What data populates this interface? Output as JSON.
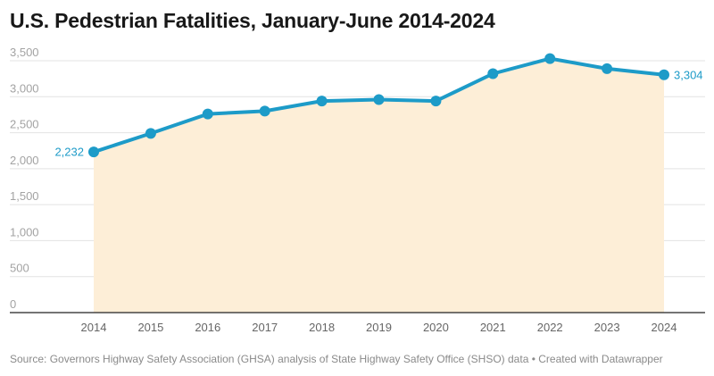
{
  "chart_data": {
    "type": "area",
    "title": "U.S. Pedestrian Fatalities, January-June 2014-2024",
    "xlabel": "",
    "ylabel": "",
    "categories": [
      "2014",
      "2015",
      "2016",
      "2017",
      "2018",
      "2019",
      "2020",
      "2021",
      "2022",
      "2023",
      "2024"
    ],
    "series": [
      {
        "name": "Pedestrian fatalities",
        "values": [
          2232,
          2490,
          2760,
          2800,
          2940,
          2960,
          2940,
          3320,
          3530,
          3390,
          3304
        ],
        "color": "#1d9bc8",
        "fill": "#fdeed7"
      }
    ],
    "yticks": [
      0,
      500,
      1000,
      1500,
      2000,
      2500,
      3000,
      3500
    ],
    "ytick_labels": [
      "0",
      "500",
      "1,000",
      "1,500",
      "2,000",
      "2,500",
      "3,000",
      "3,500"
    ],
    "ylim": [
      0,
      3500
    ],
    "grid": true,
    "data_labels": [
      {
        "index": 0,
        "text": "2,232",
        "side": "left"
      },
      {
        "index": 10,
        "text": "3,304",
        "side": "right"
      }
    ],
    "legend": "none"
  },
  "footer": {
    "source": "Source: Governors Highway Safety Association (GHSA) analysis of State Highway Safety Office (SHSO) data • Created with Datawrapper"
  }
}
